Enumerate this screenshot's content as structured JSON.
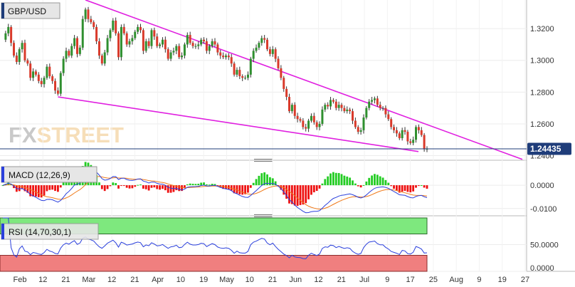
{
  "symbol": "GBP/USD",
  "watermark": "FXSTREET",
  "watermark_fx": "FX",
  "watermark_street": "STREET",
  "last_price": "1.24435",
  "colors": {
    "up": "#2f8f2f",
    "down": "#d93a2b",
    "channel": "#e020e0",
    "macd_line": "#2a3fdc",
    "signal_line": "#f07a1a",
    "hist_pos": "#22cc22",
    "hist_neg": "#ee1111",
    "rsi_line": "#2a3fdc",
    "ob_zone": "#7ee87e",
    "os_zone": "#f07f7f",
    "price_tag": "#1f3d7a"
  },
  "chart_data": [
    {
      "type": "candlestick",
      "title": "GBP/USD",
      "x_ticks": [
        "Feb",
        "12",
        "21",
        "Mar",
        "12",
        "21",
        "Apr",
        "10",
        "19",
        "May",
        "10",
        "21",
        "Jun",
        "12",
        "21",
        "Jul",
        "9",
        "17",
        "25",
        "Aug",
        "9",
        "19",
        "27"
      ],
      "y_ticks": [
        "1.3200",
        "1.3000",
        "1.2800",
        "1.2600",
        "1.2400"
      ],
      "ylim": [
        1.238,
        1.338
      ],
      "close": [
        1.313,
        1.317,
        1.321,
        1.311,
        1.303,
        1.299,
        1.307,
        1.311,
        1.3,
        1.298,
        1.289,
        1.293,
        1.291,
        1.287,
        1.285,
        1.289,
        1.296,
        1.29,
        1.287,
        1.281,
        1.279,
        1.292,
        1.301,
        1.306,
        1.303,
        1.309,
        1.314,
        1.304,
        1.308,
        1.326,
        1.332,
        1.326,
        1.324,
        1.321,
        1.312,
        1.303,
        1.298,
        1.305,
        1.314,
        1.319,
        1.325,
        1.317,
        1.302,
        1.321,
        1.317,
        1.31,
        1.312,
        1.314,
        1.318,
        1.321,
        1.319,
        1.306,
        1.312,
        1.309,
        1.319,
        1.315,
        1.309,
        1.31,
        1.313,
        1.307,
        1.301,
        1.305,
        1.306,
        1.309,
        1.302,
        1.303,
        1.31,
        1.316,
        1.311,
        1.309,
        1.309,
        1.31,
        1.313,
        1.312,
        1.306,
        1.309,
        1.312,
        1.31,
        1.305,
        1.303,
        1.302,
        1.303,
        1.302,
        1.298,
        1.291,
        1.294,
        1.29,
        1.289,
        1.289,
        1.291,
        1.301,
        1.306,
        1.308,
        1.311,
        1.314,
        1.313,
        1.307,
        1.304,
        1.307,
        1.301,
        1.295,
        1.289,
        1.282,
        1.277,
        1.268,
        1.272,
        1.265,
        1.263,
        1.262,
        1.258,
        1.257,
        1.262,
        1.265,
        1.261,
        1.258,
        1.26,
        1.269,
        1.272,
        1.271,
        1.275,
        1.274,
        1.27,
        1.272,
        1.27,
        1.268,
        1.269,
        1.268,
        1.262,
        1.258,
        1.255,
        1.256,
        1.264,
        1.27,
        1.274,
        1.275,
        1.276,
        1.272,
        1.27,
        1.27,
        1.266,
        1.263,
        1.258,
        1.256,
        1.254,
        1.251,
        1.256,
        1.255,
        1.249,
        1.248,
        1.25,
        1.258,
        1.256,
        1.253,
        1.244,
        1.2443
      ],
      "macd": {
        "label": "MACD (12,26,9)",
        "y_ticks": [
          "0.0000",
          "-0.0100"
        ],
        "ylim": [
          -0.0122,
          0.0095
        ]
      },
      "rsi": {
        "label": "RSI (14,70,30,1)",
        "y_ticks": [
          "50.0000",
          "0.0000"
        ],
        "ylim": [
          0,
          100
        ],
        "period": 14,
        "overbought": 70,
        "oversold": 30
      }
    }
  ]
}
